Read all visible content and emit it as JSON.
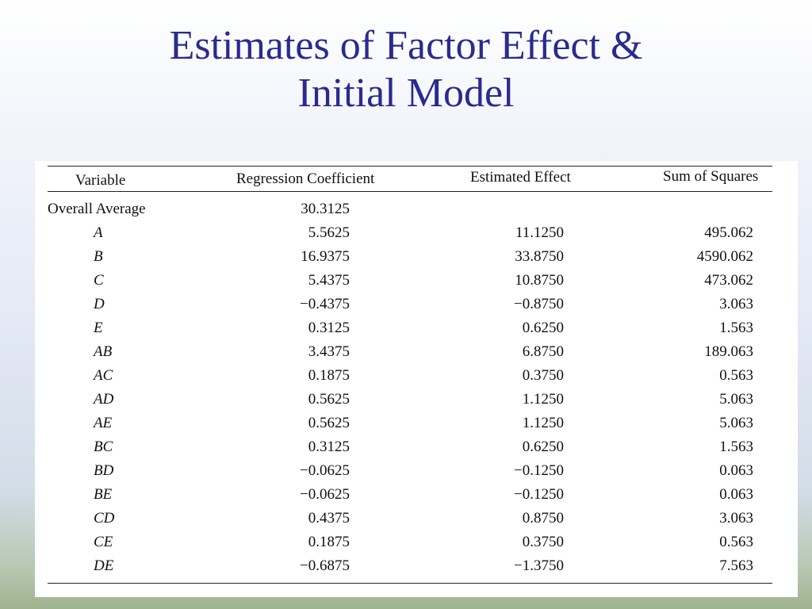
{
  "slide": {
    "title_line1": "Estimates of Factor Effect &",
    "title_line2": "Initial Model"
  },
  "table": {
    "headers": {
      "variable": "Variable",
      "regression_coefficient": "Regression Coefficient",
      "estimated_effect": "Estimated Effect",
      "sum_of_squares": "Sum of Squares"
    },
    "rows": [
      {
        "variable": "Overall Average",
        "regression_coefficient": "30.3125",
        "estimated_effect": "",
        "sum_of_squares": ""
      },
      {
        "variable": "A",
        "regression_coefficient": "5.5625",
        "estimated_effect": "11.1250",
        "sum_of_squares": "495.062"
      },
      {
        "variable": "B",
        "regression_coefficient": "16.9375",
        "estimated_effect": "33.8750",
        "sum_of_squares": "4590.062"
      },
      {
        "variable": "C",
        "regression_coefficient": "5.4375",
        "estimated_effect": "10.8750",
        "sum_of_squares": "473.062"
      },
      {
        "variable": "D",
        "regression_coefficient": "−0.4375",
        "estimated_effect": "−0.8750",
        "sum_of_squares": "3.063"
      },
      {
        "variable": "E",
        "regression_coefficient": "0.3125",
        "estimated_effect": "0.6250",
        "sum_of_squares": "1.563"
      },
      {
        "variable": "AB",
        "regression_coefficient": "3.4375",
        "estimated_effect": "6.8750",
        "sum_of_squares": "189.063"
      },
      {
        "variable": "AC",
        "regression_coefficient": "0.1875",
        "estimated_effect": "0.3750",
        "sum_of_squares": "0.563"
      },
      {
        "variable": "AD",
        "regression_coefficient": "0.5625",
        "estimated_effect": "1.1250",
        "sum_of_squares": "5.063"
      },
      {
        "variable": "AE",
        "regression_coefficient": "0.5625",
        "estimated_effect": "1.1250",
        "sum_of_squares": "5.063"
      },
      {
        "variable": "BC",
        "regression_coefficient": "0.3125",
        "estimated_effect": "0.6250",
        "sum_of_squares": "1.563"
      },
      {
        "variable": "BD",
        "regression_coefficient": "−0.0625",
        "estimated_effect": "−0.1250",
        "sum_of_squares": "0.063"
      },
      {
        "variable": "BE",
        "regression_coefficient": "−0.0625",
        "estimated_effect": "−0.1250",
        "sum_of_squares": "0.063"
      },
      {
        "variable": "CD",
        "regression_coefficient": "0.4375",
        "estimated_effect": "0.8750",
        "sum_of_squares": "3.063"
      },
      {
        "variable": "CE",
        "regression_coefficient": "0.1875",
        "estimated_effect": "0.3750",
        "sum_of_squares": "0.563"
      },
      {
        "variable": "DE",
        "regression_coefficient": "−0.6875",
        "estimated_effect": "−1.3750",
        "sum_of_squares": "7.563"
      }
    ]
  },
  "colors": {
    "title": "#2a2a8f",
    "text": "#111111"
  }
}
